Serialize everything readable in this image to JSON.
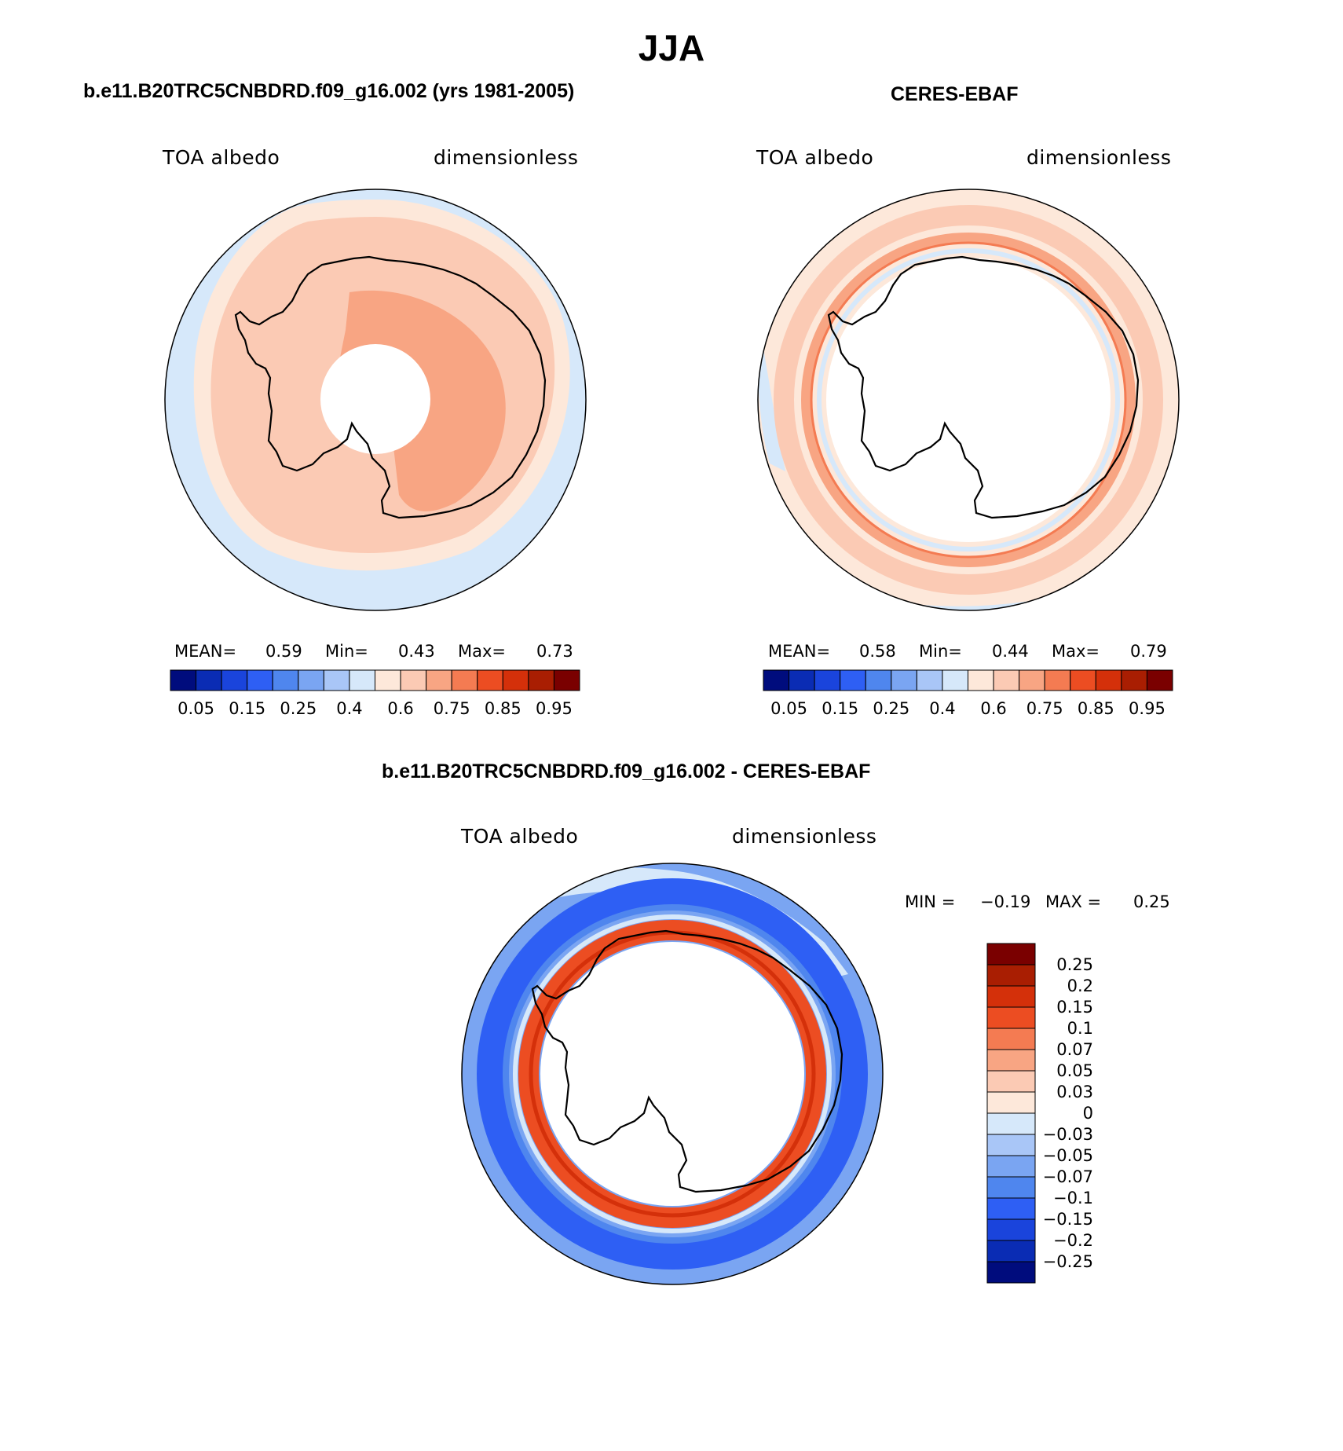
{
  "figure": {
    "title": "JJA",
    "panels": [
      {
        "id": "model",
        "title": "b.e11.B20TRC5CNBDRD.f09_g16.002 (yrs 1981-2005)",
        "left_label": "TOA albedo",
        "right_label": "dimensionless",
        "stats": {
          "mean_label": "MEAN=",
          "mean": "0.59",
          "min_label": "Min=",
          "min": "0.43",
          "max_label": "Max=",
          "max": "0.73"
        }
      },
      {
        "id": "obs",
        "title": "CERES-EBAF",
        "left_label": "TOA albedo",
        "right_label": "dimensionless",
        "stats": {
          "mean_label": "MEAN=",
          "mean": "0.58",
          "min_label": "Min=",
          "min": "0.44",
          "max_label": "Max=",
          "max": "0.79"
        }
      },
      {
        "id": "diff",
        "title": "b.e11.B20TRC5CNBDRD.f09_g16.002 - CERES-EBAF",
        "left_label": "TOA albedo",
        "right_label": "dimensionless",
        "stats": {
          "min_label": "MIN =",
          "min": "−0.19",
          "max_label": "MAX =",
          "max": "0.25"
        }
      }
    ]
  },
  "chart_data": [
    {
      "type": "heatmap",
      "projection": "south-polar-stereographic",
      "title": "b.e11.B20TRC5CNBDRD.f09_g16.002 (yrs 1981-2005)",
      "variable": "TOA albedo",
      "units": "dimensionless",
      "mean": 0.59,
      "min": 0.43,
      "max": 0.73,
      "colorbar": {
        "orientation": "horizontal",
        "levels": [
          0.05,
          0.1,
          0.15,
          0.2,
          0.25,
          0.3,
          0.4,
          0.5,
          0.6,
          0.7,
          0.75,
          0.8,
          0.85,
          0.9,
          0.95
        ],
        "tick_labels": [
          "0.05",
          "0.15",
          "0.25",
          "0.4",
          "0.6",
          "0.75",
          "0.85",
          "0.95"
        ],
        "colors": [
          "#000c7d",
          "#0a2cb4",
          "#1a44dc",
          "#2e5ff4",
          "#4f86ee",
          "#7aa5f2",
          "#a9c6f7",
          "#d6e8fa",
          "#fde8da",
          "#fbcab4",
          "#f8a583",
          "#f47b52",
          "#ec4d22",
          "#d4300a",
          "#a91e02",
          "#7a0000"
        ]
      }
    },
    {
      "type": "heatmap",
      "projection": "south-polar-stereographic",
      "title": "CERES-EBAF",
      "variable": "TOA albedo",
      "units": "dimensionless",
      "mean": 0.58,
      "min": 0.44,
      "max": 0.79,
      "colorbar": {
        "orientation": "horizontal",
        "levels": [
          0.05,
          0.1,
          0.15,
          0.2,
          0.25,
          0.3,
          0.4,
          0.5,
          0.6,
          0.7,
          0.75,
          0.8,
          0.85,
          0.9,
          0.95
        ],
        "tick_labels": [
          "0.05",
          "0.15",
          "0.25",
          "0.4",
          "0.6",
          "0.75",
          "0.85",
          "0.95"
        ],
        "colors": [
          "#000c7d",
          "#0a2cb4",
          "#1a44dc",
          "#2e5ff4",
          "#4f86ee",
          "#7aa5f2",
          "#a9c6f7",
          "#d6e8fa",
          "#fde8da",
          "#fbcab4",
          "#f8a583",
          "#f47b52",
          "#ec4d22",
          "#d4300a",
          "#a91e02",
          "#7a0000"
        ]
      }
    },
    {
      "type": "heatmap",
      "projection": "south-polar-stereographic",
      "title": "b.e11.B20TRC5CNBDRD.f09_g16.002 - CERES-EBAF",
      "variable": "TOA albedo",
      "units": "dimensionless",
      "min": -0.19,
      "max": 0.25,
      "colorbar": {
        "orientation": "vertical",
        "levels": [
          -0.25,
          -0.2,
          -0.15,
          -0.1,
          -0.07,
          -0.05,
          -0.03,
          0,
          0.03,
          0.05,
          0.07,
          0.1,
          0.15,
          0.2,
          0.25
        ],
        "tick_labels": [
          "0.25",
          "0.2",
          "0.15",
          "0.1",
          "0.07",
          "0.05",
          "0.03",
          "0",
          "−0.03",
          "−0.05",
          "−0.07",
          "−0.1",
          "−0.15",
          "−0.2",
          "−0.25"
        ],
        "colors": [
          "#000c7d",
          "#0a2cb4",
          "#1a44dc",
          "#2e5ff4",
          "#4f86ee",
          "#7aa5f2",
          "#a9c6f7",
          "#d6e8fa",
          "#fde8da",
          "#fbcab4",
          "#f8a583",
          "#f47b52",
          "#ec4d22",
          "#d4300a",
          "#a91e02",
          "#7a0000"
        ]
      }
    }
  ]
}
